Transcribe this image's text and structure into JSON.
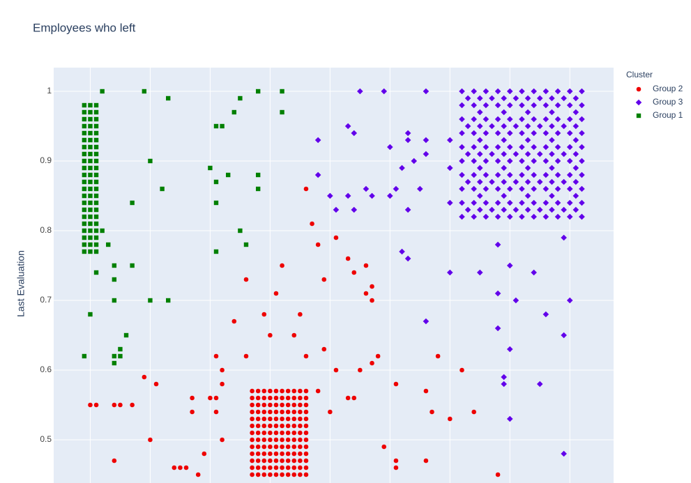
{
  "chart_data": {
    "type": "scatter",
    "title": "Employees who left",
    "y_label": "Last Evaluation",
    "legend_title": "Cluster",
    "legend": "right",
    "grid": true,
    "xlim": [
      0.039,
      0.973
    ],
    "xticks": [
      0.1,
      0.2,
      0.3,
      0.4,
      0.5,
      0.6,
      0.7,
      0.8,
      0.9
    ],
    "ylim": [
      0.438,
      1.034
    ],
    "yticks": [
      0.5,
      0.6,
      0.7,
      0.8,
      0.9,
      1
    ],
    "series": [
      {
        "name": "Group 2",
        "color": "#ee0000",
        "symbol": "circle",
        "x": [
          0.37,
          0.38,
          0.39,
          0.4,
          0.41,
          0.42,
          0.43,
          0.44,
          0.45,
          0.46,
          0.37,
          0.38,
          0.39,
          0.4,
          0.41,
          0.42,
          0.43,
          0.44,
          0.45,
          0.46,
          0.37,
          0.38,
          0.39,
          0.4,
          0.41,
          0.42,
          0.43,
          0.44,
          0.45,
          0.46,
          0.37,
          0.38,
          0.39,
          0.4,
          0.41,
          0.42,
          0.43,
          0.44,
          0.45,
          0.46,
          0.37,
          0.38,
          0.39,
          0.4,
          0.41,
          0.42,
          0.43,
          0.44,
          0.45,
          0.46,
          0.37,
          0.38,
          0.39,
          0.4,
          0.41,
          0.42,
          0.43,
          0.44,
          0.45,
          0.46,
          0.37,
          0.38,
          0.39,
          0.4,
          0.41,
          0.42,
          0.43,
          0.44,
          0.45,
          0.46,
          0.37,
          0.38,
          0.39,
          0.4,
          0.41,
          0.42,
          0.43,
          0.44,
          0.45,
          0.46,
          0.37,
          0.38,
          0.39,
          0.4,
          0.41,
          0.42,
          0.43,
          0.44,
          0.45,
          0.46,
          0.37,
          0.38,
          0.39,
          0.4,
          0.41,
          0.42,
          0.43,
          0.44,
          0.45,
          0.46,
          0.37,
          0.38,
          0.39,
          0.4,
          0.41,
          0.42,
          0.43,
          0.44,
          0.45,
          0.46,
          0.37,
          0.38,
          0.39,
          0.4,
          0.41,
          0.42,
          0.43,
          0.44,
          0.45,
          0.46,
          0.37,
          0.38,
          0.39,
          0.4,
          0.41,
          0.42,
          0.43,
          0.44,
          0.45,
          0.46,
          0.1,
          0.11,
          0.14,
          0.15,
          0.17,
          0.19,
          0.21,
          0.2,
          0.14,
          0.24,
          0.25,
          0.26,
          0.28,
          0.29,
          0.27,
          0.27,
          0.3,
          0.31,
          0.31,
          0.32,
          0.32,
          0.31,
          0.32,
          0.34,
          0.36,
          0.36,
          0.39,
          0.4,
          0.41,
          0.42,
          0.44,
          0.45,
          0.46,
          0.46,
          0.47,
          0.48,
          0.49,
          0.49,
          0.48,
          0.5,
          0.51,
          0.51,
          0.53,
          0.54,
          0.56,
          0.55,
          0.56,
          0.57,
          0.57,
          0.57,
          0.58,
          0.53,
          0.54,
          0.59,
          0.61,
          0.61,
          0.61,
          0.66,
          0.67,
          0.68,
          0.66,
          0.7,
          0.72,
          0.74,
          0.78
        ],
        "values": [
          0.57,
          0.57,
          0.57,
          0.57,
          0.57,
          0.57,
          0.57,
          0.57,
          0.57,
          0.57,
          0.56,
          0.56,
          0.56,
          0.56,
          0.56,
          0.56,
          0.56,
          0.56,
          0.56,
          0.56,
          0.55,
          0.55,
          0.55,
          0.55,
          0.55,
          0.55,
          0.55,
          0.55,
          0.55,
          0.55,
          0.54,
          0.54,
          0.54,
          0.54,
          0.54,
          0.54,
          0.54,
          0.54,
          0.54,
          0.54,
          0.53,
          0.53,
          0.53,
          0.53,
          0.53,
          0.53,
          0.53,
          0.53,
          0.53,
          0.53,
          0.52,
          0.52,
          0.52,
          0.52,
          0.52,
          0.52,
          0.52,
          0.52,
          0.52,
          0.52,
          0.51,
          0.51,
          0.51,
          0.51,
          0.51,
          0.51,
          0.51,
          0.51,
          0.51,
          0.51,
          0.5,
          0.5,
          0.5,
          0.5,
          0.5,
          0.5,
          0.5,
          0.5,
          0.5,
          0.5,
          0.49,
          0.49,
          0.49,
          0.49,
          0.49,
          0.49,
          0.49,
          0.49,
          0.49,
          0.49,
          0.48,
          0.48,
          0.48,
          0.48,
          0.48,
          0.48,
          0.48,
          0.48,
          0.48,
          0.48,
          0.47,
          0.47,
          0.47,
          0.47,
          0.47,
          0.47,
          0.47,
          0.47,
          0.47,
          0.47,
          0.46,
          0.46,
          0.46,
          0.46,
          0.46,
          0.46,
          0.46,
          0.46,
          0.46,
          0.46,
          0.45,
          0.45,
          0.45,
          0.45,
          0.45,
          0.45,
          0.45,
          0.45,
          0.45,
          0.45,
          0.55,
          0.55,
          0.55,
          0.55,
          0.55,
          0.59,
          0.58,
          0.5,
          0.47,
          0.46,
          0.46,
          0.46,
          0.45,
          0.48,
          0.56,
          0.54,
          0.56,
          0.56,
          0.54,
          0.58,
          0.6,
          0.62,
          0.5,
          0.67,
          0.73,
          0.62,
          0.68,
          0.65,
          0.71,
          0.75,
          0.65,
          0.68,
          0.62,
          0.86,
          0.81,
          0.78,
          0.73,
          0.63,
          0.57,
          0.54,
          0.79,
          0.6,
          0.76,
          0.74,
          0.75,
          0.6,
          0.71,
          0.72,
          0.7,
          0.61,
          0.62,
          0.56,
          0.56,
          0.49,
          0.58,
          0.47,
          0.46,
          0.57,
          0.54,
          0.62,
          0.47,
          0.53,
          0.6,
          0.54,
          0.45
        ]
      },
      {
        "name": "Group 3",
        "color": "#6200ea",
        "symbol": "diamond",
        "x": [
          0.72,
          0.74,
          0.76,
          0.78,
          0.8,
          0.82,
          0.84,
          0.86,
          0.88,
          0.9,
          0.92,
          0.72,
          0.74,
          0.76,
          0.78,
          0.8,
          0.82,
          0.84,
          0.86,
          0.88,
          0.9,
          0.92,
          0.72,
          0.74,
          0.76,
          0.78,
          0.8,
          0.82,
          0.84,
          0.86,
          0.88,
          0.9,
          0.92,
          0.72,
          0.74,
          0.76,
          0.78,
          0.8,
          0.82,
          0.84,
          0.86,
          0.88,
          0.9,
          0.92,
          0.72,
          0.74,
          0.76,
          0.78,
          0.8,
          0.82,
          0.84,
          0.86,
          0.88,
          0.9,
          0.92,
          0.72,
          0.74,
          0.76,
          0.78,
          0.8,
          0.82,
          0.84,
          0.86,
          0.88,
          0.9,
          0.92,
          0.72,
          0.74,
          0.76,
          0.78,
          0.8,
          0.82,
          0.84,
          0.86,
          0.88,
          0.9,
          0.92,
          0.72,
          0.74,
          0.76,
          0.78,
          0.8,
          0.82,
          0.84,
          0.86,
          0.88,
          0.9,
          0.92,
          0.72,
          0.74,
          0.76,
          0.78,
          0.8,
          0.82,
          0.84,
          0.86,
          0.88,
          0.9,
          0.92,
          0.72,
          0.74,
          0.76,
          0.78,
          0.8,
          0.82,
          0.84,
          0.86,
          0.88,
          0.9,
          0.92,
          0.73,
          0.75,
          0.77,
          0.79,
          0.81,
          0.83,
          0.85,
          0.87,
          0.89,
          0.91,
          0.73,
          0.75,
          0.77,
          0.79,
          0.81,
          0.83,
          0.85,
          0.87,
          0.89,
          0.91,
          0.73,
          0.75,
          0.77,
          0.79,
          0.81,
          0.83,
          0.85,
          0.87,
          0.89,
          0.91,
          0.73,
          0.75,
          0.77,
          0.79,
          0.81,
          0.83,
          0.85,
          0.87,
          0.89,
          0.91,
          0.73,
          0.75,
          0.77,
          0.79,
          0.81,
          0.83,
          0.85,
          0.87,
          0.89,
          0.91,
          0.75,
          0.79,
          0.83,
          0.87,
          0.91,
          0.75,
          0.79,
          0.83,
          0.87,
          0.91,
          0.75,
          0.79,
          0.83,
          0.87,
          0.91,
          0.75,
          0.79,
          0.83,
          0.87,
          0.91,
          0.55,
          0.59,
          0.66,
          0.48,
          0.53,
          0.54,
          0.6,
          0.63,
          0.63,
          0.66,
          0.66,
          0.64,
          0.62,
          0.48,
          0.5,
          0.51,
          0.53,
          0.54,
          0.56,
          0.57,
          0.6,
          0.61,
          0.65,
          0.63,
          0.7,
          0.7,
          0.7,
          0.62,
          0.63,
          0.78,
          0.8,
          0.7,
          0.75,
          0.84,
          0.78,
          0.81,
          0.9,
          0.86,
          0.66,
          0.78,
          0.89,
          0.8,
          0.79,
          0.79,
          0.85,
          0.8,
          0.89,
          0.89,
          0.92
        ],
        "values": [
          1,
          1,
          1,
          1,
          1,
          1,
          1,
          1,
          1,
          1,
          1,
          0.98,
          0.98,
          0.98,
          0.98,
          0.98,
          0.98,
          0.98,
          0.98,
          0.98,
          0.98,
          0.98,
          0.96,
          0.96,
          0.96,
          0.96,
          0.96,
          0.96,
          0.96,
          0.96,
          0.96,
          0.96,
          0.96,
          0.94,
          0.94,
          0.94,
          0.94,
          0.94,
          0.94,
          0.94,
          0.94,
          0.94,
          0.94,
          0.94,
          0.92,
          0.92,
          0.92,
          0.92,
          0.92,
          0.92,
          0.92,
          0.92,
          0.92,
          0.92,
          0.92,
          0.9,
          0.9,
          0.9,
          0.9,
          0.9,
          0.9,
          0.9,
          0.9,
          0.9,
          0.9,
          0.9,
          0.88,
          0.88,
          0.88,
          0.88,
          0.88,
          0.88,
          0.88,
          0.88,
          0.88,
          0.88,
          0.88,
          0.86,
          0.86,
          0.86,
          0.86,
          0.86,
          0.86,
          0.86,
          0.86,
          0.86,
          0.86,
          0.86,
          0.84,
          0.84,
          0.84,
          0.84,
          0.84,
          0.84,
          0.84,
          0.84,
          0.84,
          0.84,
          0.84,
          0.82,
          0.82,
          0.82,
          0.82,
          0.82,
          0.82,
          0.82,
          0.82,
          0.82,
          0.82,
          0.82,
          0.99,
          0.99,
          0.99,
          0.99,
          0.99,
          0.99,
          0.99,
          0.99,
          0.99,
          0.99,
          0.95,
          0.95,
          0.95,
          0.95,
          0.95,
          0.95,
          0.95,
          0.95,
          0.95,
          0.95,
          0.91,
          0.91,
          0.91,
          0.91,
          0.91,
          0.91,
          0.91,
          0.91,
          0.91,
          0.91,
          0.87,
          0.87,
          0.87,
          0.87,
          0.87,
          0.87,
          0.87,
          0.87,
          0.87,
          0.87,
          0.83,
          0.83,
          0.83,
          0.83,
          0.83,
          0.83,
          0.83,
          0.83,
          0.83,
          0.83,
          0.97,
          0.97,
          0.97,
          0.97,
          0.97,
          0.93,
          0.93,
          0.93,
          0.93,
          0.93,
          0.89,
          0.89,
          0.89,
          0.89,
          0.89,
          0.85,
          0.85,
          0.85,
          0.85,
          0.85,
          1,
          1,
          1,
          0.93,
          0.95,
          0.94,
          0.92,
          0.94,
          0.93,
          0.93,
          0.91,
          0.9,
          0.89,
          0.88,
          0.85,
          0.83,
          0.85,
          0.83,
          0.86,
          0.85,
          0.85,
          0.86,
          0.86,
          0.83,
          0.93,
          0.89,
          0.84,
          0.77,
          0.76,
          0.78,
          0.75,
          0.74,
          0.74,
          0.74,
          0.71,
          0.7,
          0.7,
          0.68,
          0.67,
          0.66,
          0.65,
          0.63,
          0.59,
          0.58,
          0.58,
          0.53,
          0.48,
          0.79,
          0.82
        ]
      },
      {
        "name": "Group 1",
        "color": "#008000",
        "symbol": "square",
        "x": [
          0.09,
          0.1,
          0.11,
          0.09,
          0.1,
          0.11,
          0.09,
          0.1,
          0.11,
          0.09,
          0.1,
          0.11,
          0.09,
          0.1,
          0.11,
          0.09,
          0.1,
          0.11,
          0.09,
          0.1,
          0.11,
          0.09,
          0.1,
          0.11,
          0.09,
          0.1,
          0.11,
          0.09,
          0.1,
          0.11,
          0.09,
          0.1,
          0.11,
          0.09,
          0.1,
          0.11,
          0.09,
          0.1,
          0.11,
          0.09,
          0.1,
          0.11,
          0.09,
          0.1,
          0.11,
          0.09,
          0.1,
          0.11,
          0.09,
          0.1,
          0.11,
          0.09,
          0.1,
          0.11,
          0.09,
          0.1,
          0.11,
          0.09,
          0.1,
          0.11,
          0.09,
          0.1,
          0.11,
          0.09,
          0.1,
          0.11,
          0.12,
          0.19,
          0.23,
          0.12,
          0.13,
          0.11,
          0.14,
          0.17,
          0.14,
          0.14,
          0.2,
          0.23,
          0.1,
          0.16,
          0.15,
          0.14,
          0.15,
          0.09,
          0.14,
          0.2,
          0.22,
          0.17,
          0.3,
          0.31,
          0.33,
          0.31,
          0.31,
          0.32,
          0.34,
          0.35,
          0.38,
          0.42,
          0.42,
          0.38,
          0.38,
          0.35,
          0.36,
          0.31
        ],
        "values": [
          0.98,
          0.98,
          0.98,
          0.97,
          0.97,
          0.97,
          0.96,
          0.96,
          0.96,
          0.95,
          0.95,
          0.95,
          0.94,
          0.94,
          0.94,
          0.93,
          0.93,
          0.93,
          0.92,
          0.92,
          0.92,
          0.91,
          0.91,
          0.91,
          0.9,
          0.9,
          0.9,
          0.89,
          0.89,
          0.89,
          0.88,
          0.88,
          0.88,
          0.87,
          0.87,
          0.87,
          0.86,
          0.86,
          0.86,
          0.85,
          0.85,
          0.85,
          0.84,
          0.84,
          0.84,
          0.83,
          0.83,
          0.83,
          0.82,
          0.82,
          0.82,
          0.81,
          0.81,
          0.81,
          0.8,
          0.8,
          0.8,
          0.79,
          0.79,
          0.79,
          0.78,
          0.78,
          0.78,
          0.77,
          0.77,
          0.77,
          1,
          1,
          0.99,
          0.8,
          0.78,
          0.74,
          0.75,
          0.75,
          0.73,
          0.7,
          0.7,
          0.7,
          0.68,
          0.65,
          0.63,
          0.62,
          0.62,
          0.62,
          0.61,
          0.9,
          0.86,
          0.84,
          0.89,
          0.87,
          0.88,
          0.84,
          0.95,
          0.95,
          0.97,
          0.99,
          1,
          1,
          0.97,
          0.88,
          0.86,
          0.8,
          0.78,
          0.77
        ]
      }
    ]
  }
}
